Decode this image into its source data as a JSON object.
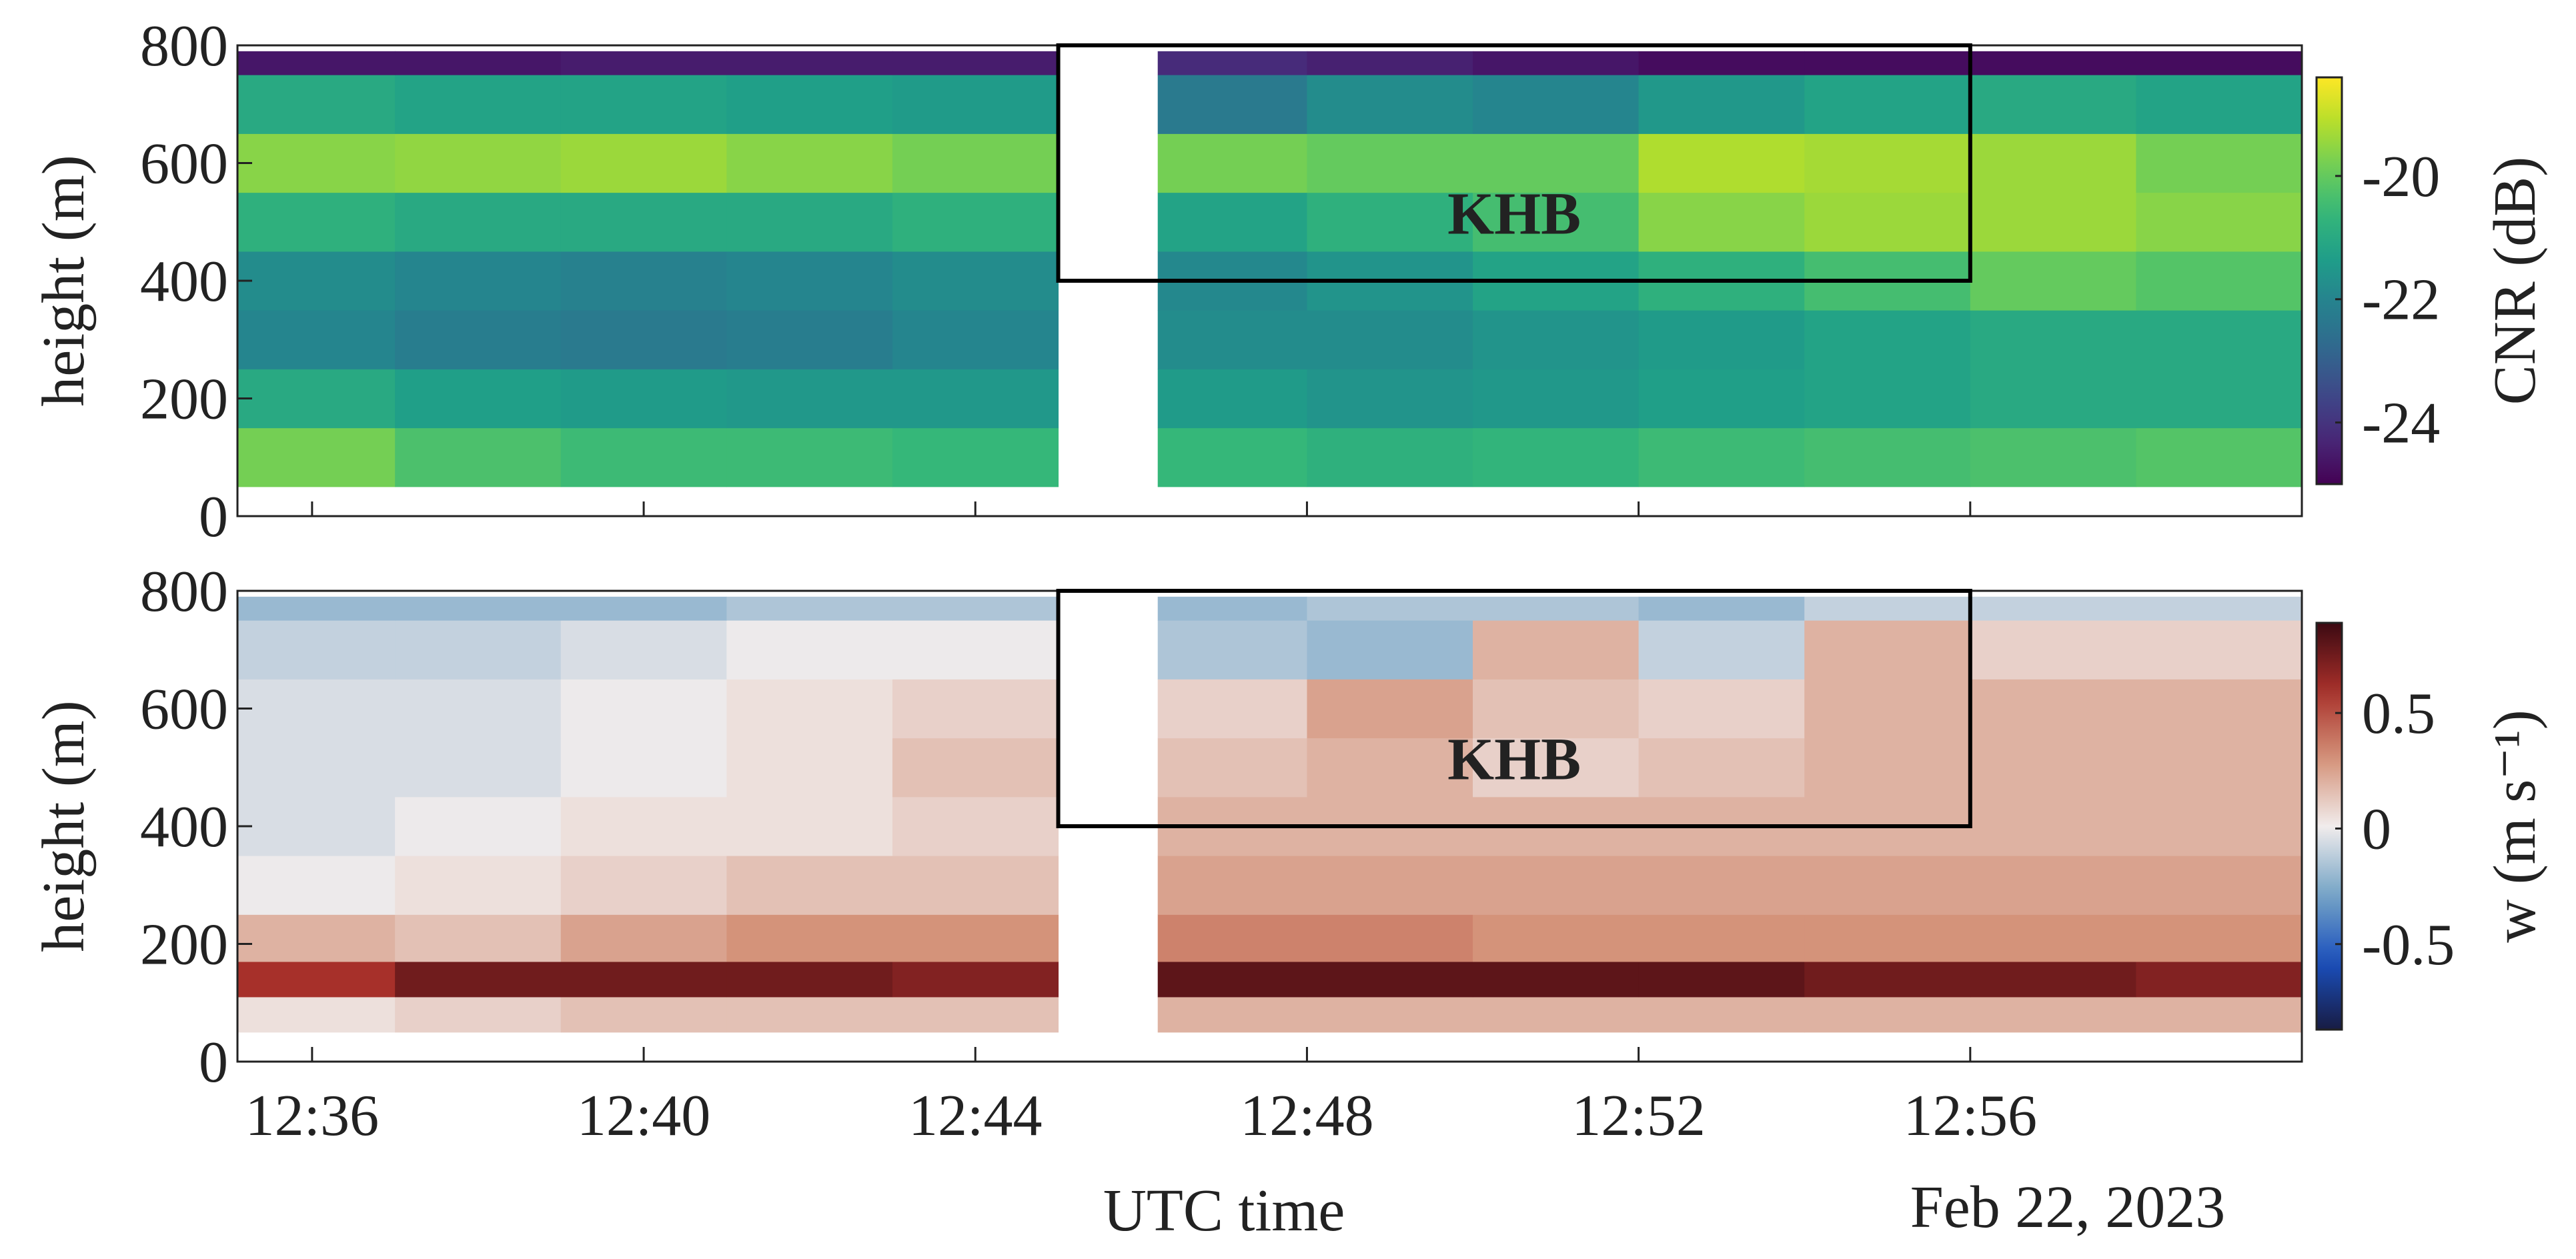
{
  "chart_data": [
    {
      "type": "heatmap",
      "ylabel": "height (m)",
      "colorbar_label": "CNR (dB)",
      "colormap": "viridis",
      "xlim": [
        35.1,
        60
      ],
      "xticks": [
        36,
        40,
        44,
        48,
        52,
        56
      ],
      "ylim": [
        0,
        800
      ],
      "yticks": [
        0,
        200,
        400,
        600,
        800
      ],
      "clim": [
        -25,
        -18.4
      ],
      "cticks": [
        -24,
        -22,
        -20
      ],
      "xbins": [
        35.1,
        37,
        39,
        41,
        43,
        45,
        46.2,
        48,
        50,
        52,
        54,
        56,
        58,
        60
      ],
      "ybins": [
        50,
        150,
        250,
        350,
        450,
        550,
        650,
        750,
        790
      ],
      "z": [
        [
          -19.8,
          -20.3,
          -20.5,
          -20.5,
          -20.6,
          null,
          -20.6,
          -20.8,
          -20.7,
          -20.5,
          -20.4,
          -20.3,
          -20.2
        ],
        [
          -21.0,
          -21.3,
          -21.4,
          -21.5,
          -21.5,
          null,
          -21.4,
          -21.6,
          -21.5,
          -21.3,
          -21.2,
          -21.0,
          -21.0
        ],
        [
          -22.0,
          -22.2,
          -22.3,
          -22.2,
          -22.0,
          null,
          -21.8,
          -21.8,
          -21.6,
          -21.4,
          -21.2,
          -21.0,
          -21.0
        ],
        [
          -21.8,
          -22.0,
          -22.1,
          -22.0,
          -21.8,
          null,
          -21.9,
          -21.6,
          -21.2,
          -20.8,
          -20.4,
          -20.0,
          -20.2
        ],
        [
          -20.8,
          -21.0,
          -21.0,
          -21.0,
          -20.8,
          null,
          -21.2,
          -20.8,
          -20.4,
          -19.6,
          -19.4,
          -19.4,
          -19.6
        ],
        [
          -19.6,
          -19.5,
          -19.4,
          -19.6,
          -19.8,
          null,
          -19.8,
          -20.0,
          -20.0,
          -19.2,
          -19.3,
          -19.4,
          -19.8
        ],
        [
          -21.0,
          -21.2,
          -21.2,
          -21.3,
          -21.4,
          null,
          -22.3,
          -21.8,
          -22.0,
          -21.5,
          -21.2,
          -21.0,
          -21.2
        ],
        [
          -24.6,
          -24.6,
          -24.5,
          -24.5,
          -24.5,
          null,
          -24.2,
          -24.4,
          -24.6,
          -24.8,
          -24.8,
          -24.8,
          -24.8
        ]
      ],
      "annotation": {
        "text": "KHB",
        "x": [
          45,
          56
        ],
        "y": [
          400,
          800
        ]
      }
    },
    {
      "type": "heatmap",
      "ylabel": "height (m)",
      "colorbar_label": "w (m s⁻¹)",
      "colormap": "balance",
      "xlabel": "UTC time",
      "date_label": "Feb 22, 2023",
      "xlim": [
        35.1,
        60
      ],
      "xticks": [
        {
          "value": 36,
          "label": "12:36"
        },
        {
          "value": 40,
          "label": "12:40"
        },
        {
          "value": 44,
          "label": "12:44"
        },
        {
          "value": 48,
          "label": "12:48"
        },
        {
          "value": 52,
          "label": "12:52"
        },
        {
          "value": 56,
          "label": "12:56"
        }
      ],
      "ylim": [
        0,
        800
      ],
      "yticks": [
        0,
        200,
        400,
        600,
        800
      ],
      "clim": [
        -0.87,
        0.89
      ],
      "cticks": [
        -0.5,
        0,
        0.5
      ],
      "xbins": [
        35.1,
        37,
        39,
        41,
        43,
        45,
        46.2,
        48,
        50,
        52,
        54,
        56,
        58,
        60
      ],
      "ybins": [
        50,
        110,
        170,
        250,
        350,
        450,
        550,
        650,
        750,
        790
      ],
      "z": [
        [
          0.05,
          0.1,
          0.15,
          0.15,
          0.15,
          null,
          0.2,
          0.2,
          0.2,
          0.2,
          0.2,
          0.2,
          0.2
        ],
        [
          0.6,
          0.75,
          0.75,
          0.75,
          0.7,
          null,
          0.8,
          0.8,
          0.8,
          0.8,
          0.75,
          0.75,
          0.7
        ],
        [
          0.2,
          0.15,
          0.25,
          0.3,
          0.3,
          null,
          0.35,
          0.35,
          0.3,
          0.3,
          0.3,
          0.3,
          0.3
        ],
        [
          0.0,
          0.05,
          0.1,
          0.15,
          0.15,
          null,
          0.25,
          0.25,
          0.25,
          0.25,
          0.25,
          0.25,
          0.25
        ],
        [
          -0.05,
          0.0,
          0.05,
          0.05,
          0.1,
          null,
          0.2,
          0.2,
          0.2,
          0.2,
          0.2,
          0.2,
          0.2
        ],
        [
          -0.05,
          -0.05,
          0.0,
          0.05,
          0.15,
          null,
          0.15,
          0.2,
          0.1,
          0.15,
          0.2,
          0.2,
          0.2
        ],
        [
          -0.05,
          -0.05,
          0.0,
          0.05,
          0.1,
          null,
          0.1,
          0.25,
          0.15,
          0.1,
          0.2,
          0.2,
          0.2
        ],
        [
          -0.1,
          -0.1,
          -0.05,
          0.0,
          0.0,
          null,
          -0.15,
          -0.2,
          0.2,
          -0.1,
          0.2,
          0.1,
          0.1
        ],
        [
          -0.2,
          -0.2,
          -0.2,
          -0.15,
          -0.15,
          null,
          -0.2,
          -0.15,
          -0.15,
          -0.2,
          -0.1,
          -0.1,
          -0.1
        ]
      ],
      "annotation": {
        "text": "KHB",
        "x": [
          45,
          56
        ],
        "y": [
          400,
          800
        ]
      }
    }
  ]
}
